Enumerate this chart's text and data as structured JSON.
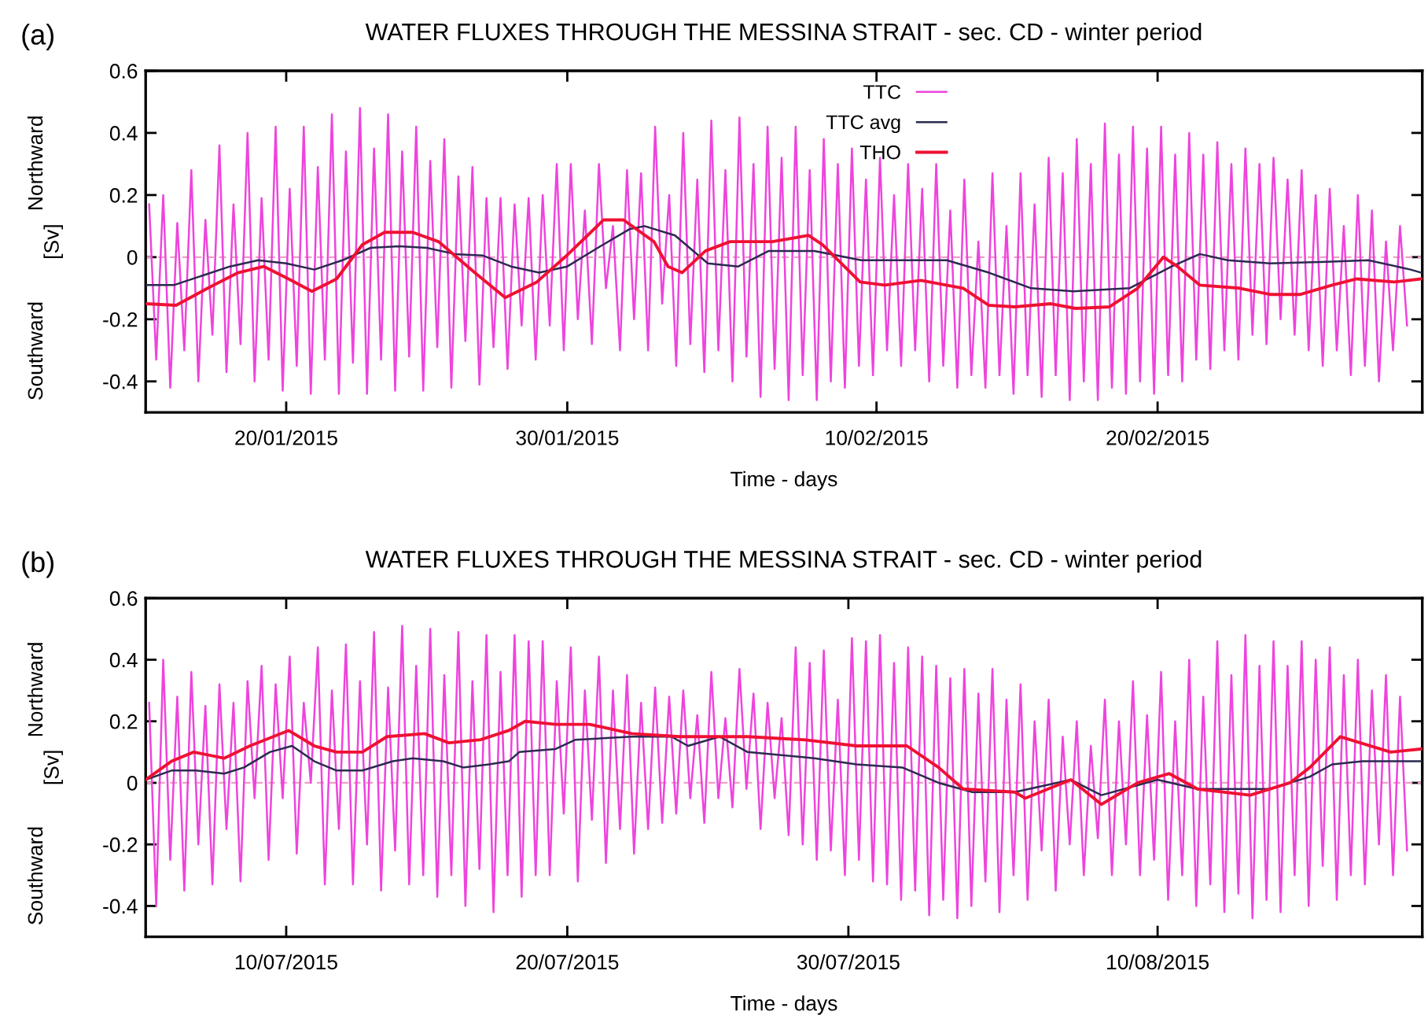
{
  "chart_data": [
    {
      "type": "line",
      "title": "WATER FLUXES THROUGH THE MESSINA STRAIT - sec. CD - winter period",
      "xlabel": "Time - days",
      "ylabel": "[Sv]",
      "annotations": [
        "(a)",
        "Northward",
        "Southward"
      ],
      "xlim": [
        "2015-01-15T00:00",
        "2015-03-01T10:00"
      ],
      "ylim": [
        -0.5,
        0.6
      ],
      "yticks": [
        -0.4,
        -0.2,
        0,
        0.2,
        0.4,
        0.6
      ],
      "xticks": [
        {
          "value": "2015-01-20",
          "label": "20/01/2015"
        },
        {
          "value": "2015-01-30",
          "label": "30/01/2015"
        },
        {
          "value": "2015-02-10",
          "label": "10/02/2015"
        },
        {
          "value": "2015-02-20",
          "label": "20/02/2015"
        }
      ],
      "grid": false,
      "legend": "top",
      "line_style": "solid",
      "ref_lines": [
        {
          "axis": "y",
          "value": 0,
          "label": null,
          "color": "#f0a0c8",
          "line_style": "dashed"
        }
      ],
      "series": [
        {
          "name": "TTC",
          "color": "#ee44dd",
          "x": [
            "2015-01-15T03:00",
            "2015-01-15T09:00",
            "2015-01-15T15:00",
            "2015-01-15T21:00",
            "2015-01-16T03:00",
            "2015-01-16T09:00",
            "2015-01-16T15:00",
            "2015-01-16T21:00",
            "2015-01-17T03:00",
            "2015-01-17T09:00",
            "2015-01-17T15:00",
            "2015-01-17T21:00",
            "2015-01-18T03:00",
            "2015-01-18T09:00",
            "2015-01-18T15:00",
            "2015-01-18T21:00",
            "2015-01-19T03:00",
            "2015-01-19T09:00",
            "2015-01-19T15:00",
            "2015-01-19T21:00",
            "2015-01-20T03:00",
            "2015-01-20T09:00",
            "2015-01-20T15:00",
            "2015-01-20T21:00",
            "2015-01-21T03:00",
            "2015-01-21T09:00",
            "2015-01-21T15:00",
            "2015-01-21T21:00",
            "2015-01-22T03:00",
            "2015-01-22T09:00",
            "2015-01-22T15:00",
            "2015-01-22T21:00",
            "2015-01-23T03:00",
            "2015-01-23T09:00",
            "2015-01-23T15:00",
            "2015-01-23T21:00",
            "2015-01-24T03:00",
            "2015-01-24T09:00",
            "2015-01-24T15:00",
            "2015-01-24T21:00",
            "2015-01-25T03:00",
            "2015-01-25T09:00",
            "2015-01-25T15:00",
            "2015-01-25T21:00",
            "2015-01-26T03:00",
            "2015-01-26T09:00",
            "2015-01-26T15:00",
            "2015-01-26T21:00",
            "2015-01-27T03:00",
            "2015-01-27T09:00",
            "2015-01-27T15:00",
            "2015-01-27T21:00",
            "2015-01-28T03:00",
            "2015-01-28T09:00",
            "2015-01-28T15:00",
            "2015-01-28T21:00",
            "2015-01-29T03:00",
            "2015-01-29T09:00",
            "2015-01-29T15:00",
            "2015-01-29T21:00",
            "2015-01-30T03:00",
            "2015-01-30T09:00",
            "2015-01-30T15:00",
            "2015-01-30T21:00",
            "2015-01-31T03:00",
            "2015-01-31T09:00",
            "2015-01-31T15:00",
            "2015-01-31T21:00",
            "2015-02-01T03:00",
            "2015-02-01T09:00",
            "2015-02-01T15:00",
            "2015-02-01T21:00",
            "2015-02-02T03:00",
            "2015-02-02T09:00",
            "2015-02-02T15:00",
            "2015-02-02T21:00",
            "2015-02-03T03:00",
            "2015-02-03T09:00",
            "2015-02-03T15:00",
            "2015-02-03T21:00",
            "2015-02-04T03:00",
            "2015-02-04T09:00",
            "2015-02-04T15:00",
            "2015-02-04T21:00",
            "2015-02-05T03:00",
            "2015-02-05T09:00",
            "2015-02-05T15:00",
            "2015-02-05T21:00",
            "2015-02-06T03:00",
            "2015-02-06T09:00",
            "2015-02-06T15:00",
            "2015-02-06T21:00",
            "2015-02-07T03:00",
            "2015-02-07T09:00",
            "2015-02-07T15:00",
            "2015-02-07T21:00",
            "2015-02-08T03:00",
            "2015-02-08T09:00",
            "2015-02-08T15:00",
            "2015-02-08T21:00",
            "2015-02-09T03:00",
            "2015-02-09T09:00",
            "2015-02-09T15:00",
            "2015-02-09T21:00",
            "2015-02-10T03:00",
            "2015-02-10T09:00",
            "2015-02-10T15:00",
            "2015-02-10T21:00",
            "2015-02-11T03:00",
            "2015-02-11T09:00",
            "2015-02-11T15:00",
            "2015-02-11T21:00",
            "2015-02-12T03:00",
            "2015-02-12T09:00",
            "2015-02-12T15:00",
            "2015-02-12T21:00",
            "2015-02-13T03:00",
            "2015-02-13T09:00",
            "2015-02-13T15:00",
            "2015-02-13T21:00",
            "2015-02-14T03:00",
            "2015-02-14T09:00",
            "2015-02-14T15:00",
            "2015-02-14T21:00",
            "2015-02-15T03:00",
            "2015-02-15T09:00",
            "2015-02-15T15:00",
            "2015-02-15T21:00",
            "2015-02-16T03:00",
            "2015-02-16T09:00",
            "2015-02-16T15:00",
            "2015-02-16T21:00",
            "2015-02-17T03:00",
            "2015-02-17T09:00",
            "2015-02-17T15:00",
            "2015-02-17T21:00",
            "2015-02-18T03:00",
            "2015-02-18T09:00",
            "2015-02-18T15:00",
            "2015-02-18T21:00",
            "2015-02-19T03:00",
            "2015-02-19T09:00",
            "2015-02-19T15:00",
            "2015-02-19T21:00",
            "2015-02-20T03:00",
            "2015-02-20T09:00",
            "2015-02-20T15:00",
            "2015-02-20T21:00",
            "2015-02-21T03:00",
            "2015-02-21T09:00",
            "2015-02-21T15:00",
            "2015-02-21T21:00",
            "2015-02-22T03:00",
            "2015-02-22T09:00",
            "2015-02-22T15:00",
            "2015-02-22T21:00",
            "2015-02-23T03:00",
            "2015-02-23T09:00",
            "2015-02-23T15:00",
            "2015-02-23T21:00",
            "2015-02-24T03:00",
            "2015-02-24T09:00",
            "2015-02-24T15:00",
            "2015-02-24T21:00",
            "2015-02-25T03:00",
            "2015-02-25T09:00",
            "2015-02-25T15:00",
            "2015-02-25T21:00",
            "2015-02-26T03:00",
            "2015-02-26T09:00",
            "2015-02-26T15:00",
            "2015-02-26T21:00",
            "2015-02-27T03:00",
            "2015-02-27T09:00",
            "2015-02-27T15:00",
            "2015-02-27T21:00",
            "2015-02-28T03:00",
            "2015-02-28T09:00",
            "2015-02-28T15:00",
            "2015-02-28T21:00"
          ],
          "values": [
            0.17,
            -0.33,
            0.2,
            -0.42,
            0.11,
            -0.3,
            0.28,
            -0.4,
            0.12,
            -0.25,
            0.36,
            -0.37,
            0.17,
            -0.28,
            0.4,
            -0.4,
            0.19,
            -0.33,
            0.42,
            -0.43,
            0.22,
            -0.35,
            0.42,
            -0.44,
            0.29,
            -0.33,
            0.46,
            -0.44,
            0.34,
            -0.34,
            0.48,
            -0.44,
            0.35,
            -0.33,
            0.46,
            -0.43,
            0.34,
            -0.32,
            0.42,
            -0.43,
            0.31,
            -0.29,
            0.38,
            -0.42,
            0.26,
            -0.27,
            0.29,
            -0.41,
            0.19,
            -0.29,
            0.19,
            -0.36,
            0.17,
            -0.22,
            0.19,
            -0.33,
            0.2,
            -0.22,
            0.3,
            -0.3,
            0.3,
            -0.2,
            0.15,
            -0.28,
            0.3,
            -0.1,
            0.1,
            -0.3,
            0.28,
            -0.2,
            0.27,
            -0.3,
            0.42,
            -0.15,
            0.2,
            -0.35,
            0.4,
            -0.28,
            0.25,
            -0.37,
            0.44,
            -0.3,
            0.28,
            -0.4,
            0.45,
            -0.32,
            0.3,
            -0.45,
            0.42,
            -0.36,
            0.32,
            -0.46,
            0.42,
            -0.38,
            0.28,
            -0.46,
            0.38,
            -0.4,
            0.3,
            -0.42,
            0.35,
            -0.35,
            0.25,
            -0.38,
            0.32,
            -0.3,
            0.2,
            -0.35,
            0.3,
            -0.3,
            0.22,
            -0.4,
            0.3,
            -0.35,
            0.15,
            -0.42,
            0.25,
            -0.38,
            0.05,
            -0.42,
            0.27,
            -0.38,
            0.1,
            -0.44,
            0.27,
            -0.38,
            0.17,
            -0.45,
            0.32,
            -0.38,
            0.27,
            -0.46,
            0.38,
            -0.4,
            0.3,
            -0.46,
            0.43,
            -0.42,
            0.33,
            -0.44,
            0.42,
            -0.4,
            0.35,
            -0.44,
            0.42,
            -0.38,
            0.33,
            -0.4,
            0.4,
            -0.33,
            0.33,
            -0.36,
            0.37,
            -0.3,
            0.3,
            -0.33,
            0.35,
            -0.25,
            0.3,
            -0.28,
            0.32,
            -0.2,
            0.25,
            -0.25,
            0.28,
            -0.3,
            0.2,
            -0.35,
            0.22,
            -0.3,
            0.1,
            -0.38,
            0.2,
            -0.35,
            0.15,
            -0.4,
            0.05,
            -0.3,
            0.1,
            -0.22
          ]
        },
        {
          "name": "TTC avg",
          "color": "#2a2a50",
          "x": [
            "2015-01-15T00:00",
            "2015-01-16T00:00",
            "2015-01-17T00:00",
            "2015-01-18T00:00",
            "2015-01-19T00:00",
            "2015-01-20T00:00",
            "2015-01-21T00:00",
            "2015-01-22T00:00",
            "2015-01-23T00:00",
            "2015-01-24T00:00",
            "2015-01-25T00:00",
            "2015-01-26T00:00",
            "2015-01-27T00:00",
            "2015-01-28T00:00",
            "2015-01-29T00:00",
            "2015-01-30T00:00",
            "2015-01-31T02:00",
            "2015-02-01T05:00",
            "2015-02-01T18:00",
            "2015-02-02T20:00",
            "2015-02-04T00:00",
            "2015-02-05T02:00",
            "2015-02-06T04:00",
            "2015-02-07T19:00",
            "2015-02-09T11:00",
            "2015-02-12T12:00",
            "2015-02-14T00:00",
            "2015-02-15T12:00",
            "2015-02-17T00:00",
            "2015-02-19T00:00",
            "2015-02-20T12:00",
            "2015-02-21T12:00",
            "2015-02-22T12:00",
            "2015-02-24T00:00",
            "2015-02-26T00:00",
            "2015-02-27T12:00",
            "2015-03-01T00:00",
            "2015-03-01T09:00"
          ],
          "values": [
            -0.09,
            -0.09,
            -0.06,
            -0.03,
            -0.01,
            -0.02,
            -0.04,
            -0.01,
            0.03,
            0.035,
            0.03,
            0.01,
            0.005,
            -0.03,
            -0.05,
            -0.03,
            0.03,
            0.09,
            0.1,
            0.07,
            -0.02,
            -0.03,
            0.02,
            0.02,
            -0.01,
            -0.01,
            -0.05,
            -0.1,
            -0.11,
            -0.1,
            -0.03,
            0.01,
            -0.01,
            -0.02,
            -0.015,
            -0.01,
            -0.04,
            -0.05
          ]
        },
        {
          "name": "THO",
          "color": "#ee1133",
          "x": [
            "2015-01-15T00:00",
            "2015-01-16T02:00",
            "2015-01-17T05:00",
            "2015-01-18T07:00",
            "2015-01-19T05:00",
            "2015-01-20T02:00",
            "2015-01-20T22:00",
            "2015-01-21T19:00",
            "2015-01-22T17:00",
            "2015-01-23T12:00",
            "2015-01-24T12:00",
            "2015-01-25T10:00",
            "2015-01-26T17:00",
            "2015-01-27T19:00",
            "2015-01-28T22:00",
            "2015-01-29T22:00",
            "2015-01-31T07:00",
            "2015-02-01T00:00",
            "2015-02-02T02:00",
            "2015-02-02T14:00",
            "2015-02-03T02:00",
            "2015-02-03T22:00",
            "2015-02-04T19:00",
            "2015-02-06T07:00",
            "2015-02-07T14:00",
            "2015-02-08T02:00",
            "2015-02-09T10:00",
            "2015-02-10T07:00",
            "2015-02-11T14:00",
            "2015-02-13T02:00",
            "2015-02-14T00:00",
            "2015-02-14T22:00",
            "2015-02-16T05:00",
            "2015-02-17T02:00",
            "2015-02-18T07:00",
            "2015-02-19T07:00",
            "2015-02-20T05:00",
            "2015-02-20T17:00",
            "2015-02-21T12:00",
            "2015-02-22T22:00",
            "2015-02-24T00:00",
            "2015-02-25T02:00",
            "2015-02-26T05:00",
            "2015-02-27T02:00",
            "2015-02-28T10:00",
            "2015-03-01T09:00"
          ],
          "values": [
            -0.15,
            -0.155,
            -0.1,
            -0.05,
            -0.03,
            -0.07,
            -0.11,
            -0.07,
            0.04,
            0.08,
            0.08,
            0.05,
            -0.05,
            -0.13,
            -0.08,
            0.0,
            0.12,
            0.12,
            0.05,
            -0.03,
            -0.05,
            0.02,
            0.05,
            0.05,
            0.07,
            0.04,
            -0.08,
            -0.09,
            -0.075,
            -0.1,
            -0.155,
            -0.16,
            -0.15,
            -0.165,
            -0.16,
            -0.1,
            0.0,
            -0.03,
            -0.09,
            -0.1,
            -0.12,
            -0.12,
            -0.09,
            -0.07,
            -0.08,
            -0.07
          ]
        }
      ]
    },
    {
      "type": "line",
      "title": "WATER FLUXES THROUGH THE MESSINA STRAIT - sec. CD - winter period",
      "xlabel": "Time - days",
      "ylabel": "[Sv]",
      "annotations": [
        "(b)",
        "Northward",
        "Southward"
      ],
      "xlim": [
        "2015-07-05T00:00",
        "2015-08-19T10:00"
      ],
      "ylim": [
        -0.5,
        0.6
      ],
      "yticks": [
        -0.4,
        -0.2,
        0,
        0.2,
        0.4,
        0.6
      ],
      "xticks": [
        {
          "value": "2015-07-10",
          "label": "10/07/2015"
        },
        {
          "value": "2015-07-20",
          "label": "20/07/2015"
        },
        {
          "value": "2015-07-30",
          "label": "30/07/2015"
        },
        {
          "value": "2015-08-10",
          "label": "10/08/2015"
        }
      ],
      "grid": false,
      "line_style": "solid",
      "ref_lines": [
        {
          "axis": "y",
          "value": 0,
          "label": null,
          "color": "#f0a0c8",
          "line_style": "dashed"
        }
      ],
      "series": [
        {
          "color": "#ee44dd",
          "x": [
            "2015-07-05T03:00",
            "2015-07-05T09:00",
            "2015-07-05T15:00",
            "2015-07-05T21:00",
            "2015-07-06T03:00",
            "2015-07-06T09:00",
            "2015-07-06T15:00",
            "2015-07-06T21:00",
            "2015-07-07T03:00",
            "2015-07-07T09:00",
            "2015-07-07T15:00",
            "2015-07-07T21:00",
            "2015-07-08T03:00",
            "2015-07-08T09:00",
            "2015-07-08T15:00",
            "2015-07-08T21:00",
            "2015-07-09T03:00",
            "2015-07-09T09:00",
            "2015-07-09T15:00",
            "2015-07-09T21:00",
            "2015-07-10T03:00",
            "2015-07-10T09:00",
            "2015-07-10T15:00",
            "2015-07-10T21:00",
            "2015-07-11T03:00",
            "2015-07-11T09:00",
            "2015-07-11T15:00",
            "2015-07-11T21:00",
            "2015-07-12T03:00",
            "2015-07-12T09:00",
            "2015-07-12T15:00",
            "2015-07-12T21:00",
            "2015-07-13T03:00",
            "2015-07-13T09:00",
            "2015-07-13T15:00",
            "2015-07-13T21:00",
            "2015-07-14T03:00",
            "2015-07-14T09:00",
            "2015-07-14T15:00",
            "2015-07-14T21:00",
            "2015-07-15T03:00",
            "2015-07-15T09:00",
            "2015-07-15T15:00",
            "2015-07-15T21:00",
            "2015-07-16T03:00",
            "2015-07-16T09:00",
            "2015-07-16T15:00",
            "2015-07-16T21:00",
            "2015-07-17T03:00",
            "2015-07-17T09:00",
            "2015-07-17T15:00",
            "2015-07-17T21:00",
            "2015-07-18T03:00",
            "2015-07-18T09:00",
            "2015-07-18T15:00",
            "2015-07-18T21:00",
            "2015-07-19T03:00",
            "2015-07-19T09:00",
            "2015-07-19T15:00",
            "2015-07-19T21:00",
            "2015-07-20T03:00",
            "2015-07-20T09:00",
            "2015-07-20T15:00",
            "2015-07-20T21:00",
            "2015-07-21T03:00",
            "2015-07-21T09:00",
            "2015-07-21T15:00",
            "2015-07-21T21:00",
            "2015-07-22T03:00",
            "2015-07-22T09:00",
            "2015-07-22T15:00",
            "2015-07-22T21:00",
            "2015-07-23T03:00",
            "2015-07-23T09:00",
            "2015-07-23T15:00",
            "2015-07-23T21:00",
            "2015-07-24T03:00",
            "2015-07-24T09:00",
            "2015-07-24T15:00",
            "2015-07-24T21:00",
            "2015-07-25T03:00",
            "2015-07-25T09:00",
            "2015-07-25T15:00",
            "2015-07-25T21:00",
            "2015-07-26T03:00",
            "2015-07-26T09:00",
            "2015-07-26T15:00",
            "2015-07-26T21:00",
            "2015-07-27T03:00",
            "2015-07-27T09:00",
            "2015-07-27T15:00",
            "2015-07-27T21:00",
            "2015-07-28T03:00",
            "2015-07-28T09:00",
            "2015-07-28T15:00",
            "2015-07-28T21:00",
            "2015-07-29T03:00",
            "2015-07-29T09:00",
            "2015-07-29T15:00",
            "2015-07-29T21:00",
            "2015-07-30T03:00",
            "2015-07-30T09:00",
            "2015-07-30T15:00",
            "2015-07-30T21:00",
            "2015-07-31T03:00",
            "2015-07-31T09:00",
            "2015-07-31T15:00",
            "2015-07-31T21:00",
            "2015-08-01T03:00",
            "2015-08-01T09:00",
            "2015-08-01T15:00",
            "2015-08-01T21:00",
            "2015-08-02T03:00",
            "2015-08-02T09:00",
            "2015-08-02T15:00",
            "2015-08-02T21:00",
            "2015-08-03T03:00",
            "2015-08-03T09:00",
            "2015-08-03T15:00",
            "2015-08-03T21:00",
            "2015-08-04T03:00",
            "2015-08-04T09:00",
            "2015-08-04T15:00",
            "2015-08-04T21:00",
            "2015-08-05T03:00",
            "2015-08-05T09:00",
            "2015-08-05T15:00",
            "2015-08-05T21:00",
            "2015-08-06T03:00",
            "2015-08-06T09:00",
            "2015-08-06T15:00",
            "2015-08-06T21:00",
            "2015-08-07T03:00",
            "2015-08-07T09:00",
            "2015-08-07T15:00",
            "2015-08-07T21:00",
            "2015-08-08T03:00",
            "2015-08-08T09:00",
            "2015-08-08T15:00",
            "2015-08-08T21:00",
            "2015-08-09T03:00",
            "2015-08-09T09:00",
            "2015-08-09T15:00",
            "2015-08-09T21:00",
            "2015-08-10T03:00",
            "2015-08-10T09:00",
            "2015-08-10T15:00",
            "2015-08-10T21:00",
            "2015-08-11T03:00",
            "2015-08-11T09:00",
            "2015-08-11T15:00",
            "2015-08-11T21:00",
            "2015-08-12T03:00",
            "2015-08-12T09:00",
            "2015-08-12T15:00",
            "2015-08-12T21:00",
            "2015-08-13T03:00",
            "2015-08-13T09:00",
            "2015-08-13T15:00",
            "2015-08-13T21:00",
            "2015-08-14T03:00",
            "2015-08-14T09:00",
            "2015-08-14T15:00",
            "2015-08-14T21:00",
            "2015-08-15T03:00",
            "2015-08-15T09:00",
            "2015-08-15T15:00",
            "2015-08-15T21:00",
            "2015-08-16T03:00",
            "2015-08-16T09:00",
            "2015-08-16T15:00",
            "2015-08-16T21:00",
            "2015-08-17T03:00",
            "2015-08-17T09:00",
            "2015-08-17T15:00",
            "2015-08-17T21:00",
            "2015-08-18T03:00",
            "2015-08-18T09:00",
            "2015-08-18T15:00",
            "2015-08-18T21:00"
          ],
          "values": [
            0.26,
            -0.4,
            0.4,
            -0.25,
            0.28,
            -0.35,
            0.36,
            -0.2,
            0.25,
            -0.33,
            0.32,
            -0.15,
            0.26,
            -0.32,
            0.33,
            -0.05,
            0.38,
            -0.25,
            0.32,
            -0.05,
            0.41,
            -0.23,
            0.26,
            0.0,
            0.44,
            -0.33,
            0.3,
            -0.15,
            0.45,
            -0.33,
            0.33,
            -0.2,
            0.49,
            -0.35,
            0.31,
            -0.22,
            0.51,
            -0.33,
            0.38,
            -0.3,
            0.5,
            -0.37,
            0.35,
            -0.3,
            0.49,
            -0.4,
            0.33,
            -0.28,
            0.48,
            -0.42,
            0.36,
            -0.3,
            0.48,
            -0.37,
            0.46,
            -0.3,
            0.46,
            -0.3,
            0.33,
            -0.1,
            0.44,
            -0.32,
            0.3,
            -0.12,
            0.41,
            -0.26,
            0.3,
            -0.15,
            0.35,
            -0.23,
            0.26,
            -0.15,
            0.31,
            -0.13,
            0.28,
            -0.1,
            0.3,
            -0.05,
            0.22,
            -0.13,
            0.36,
            -0.05,
            0.21,
            -0.08,
            0.37,
            -0.02,
            0.29,
            -0.15,
            0.26,
            -0.05,
            0.21,
            -0.17,
            0.44,
            -0.2,
            0.39,
            -0.25,
            0.43,
            -0.22,
            0.27,
            -0.3,
            0.47,
            -0.25,
            0.46,
            -0.32,
            0.48,
            -0.33,
            0.39,
            -0.38,
            0.44,
            -0.35,
            0.41,
            -0.43,
            0.38,
            -0.38,
            0.34,
            -0.44,
            0.37,
            -0.4,
            0.29,
            -0.32,
            0.37,
            -0.42,
            0.27,
            -0.3,
            0.32,
            -0.38,
            0.2,
            -0.22,
            0.27,
            -0.35,
            0.15,
            -0.2,
            0.2,
            -0.3,
            0.12,
            -0.18,
            0.27,
            -0.3,
            0.2,
            -0.2,
            0.33,
            -0.3,
            0.22,
            -0.25,
            0.36,
            -0.38,
            0.2,
            -0.3,
            0.4,
            -0.4,
            0.28,
            -0.33,
            0.46,
            -0.42,
            0.35,
            -0.36,
            0.48,
            -0.44,
            0.38,
            -0.38,
            0.46,
            -0.42,
            0.38,
            -0.3,
            0.46,
            -0.4,
            0.4,
            -0.27,
            0.44,
            -0.38,
            0.35,
            -0.3,
            0.4,
            -0.33,
            0.3,
            -0.2,
            0.35,
            -0.3,
            0.28,
            -0.22
          ]
        },
        {
          "color": "#2a2a50",
          "x": [
            "2015-07-05T00:00",
            "2015-07-05T22:00",
            "2015-07-06T19:00",
            "2015-07-07T19:00",
            "2015-07-08T12:00",
            "2015-07-09T10:00",
            "2015-07-10T05:00",
            "2015-07-11T00:00",
            "2015-07-11T19:00",
            "2015-07-12T17:00",
            "2015-07-13T19:00",
            "2015-07-14T12:00",
            "2015-07-15T14:00",
            "2015-07-16T07:00",
            "2015-07-17T05:00",
            "2015-07-17T22:00",
            "2015-07-18T07:00",
            "2015-07-19T14:00",
            "2015-07-20T07:00",
            "2015-07-22T07:00",
            "2015-07-23T17:00",
            "2015-07-24T07:00",
            "2015-07-25T10:00",
            "2015-07-26T10:00",
            "2015-07-28T19:00",
            "2015-07-30T07:00",
            "2015-07-31T22:00",
            "2015-08-02T05:00",
            "2015-08-03T10:00",
            "2015-08-04T22:00",
            "2015-08-06T22:00",
            "2015-08-08T00:00",
            "2015-08-10T00:00",
            "2015-08-11T10:00",
            "2015-08-14T00:00",
            "2015-08-15T10:00",
            "2015-08-16T05:00",
            "2015-08-17T07:00",
            "2015-08-19T09:00"
          ],
          "values": [
            0.01,
            0.04,
            0.04,
            0.03,
            0.05,
            0.1,
            0.12,
            0.07,
            0.04,
            0.04,
            0.07,
            0.08,
            0.07,
            0.05,
            0.06,
            0.07,
            0.1,
            0.11,
            0.14,
            0.15,
            0.15,
            0.12,
            0.15,
            0.1,
            0.08,
            0.06,
            0.05,
            0.0,
            -0.03,
            -0.03,
            0.01,
            -0.04,
            0.01,
            -0.02,
            -0.02,
            0.02,
            0.06,
            0.07,
            0.07
          ]
        },
        {
          "color": "#ee1133",
          "x": [
            "2015-07-05T00:00",
            "2015-07-05T22:00",
            "2015-07-06T17:00",
            "2015-07-07T19:00",
            "2015-07-08T17:00",
            "2015-07-10T02:00",
            "2015-07-11T00:00",
            "2015-07-11T19:00",
            "2015-07-12T17:00",
            "2015-07-13T14:00",
            "2015-07-14T22:00",
            "2015-07-15T19:00",
            "2015-07-16T22:00",
            "2015-07-17T22:00",
            "2015-07-18T12:00",
            "2015-07-19T14:00",
            "2015-07-20T19:00",
            "2015-07-22T07:00",
            "2015-07-24T00:00",
            "2015-07-26T10:00",
            "2015-07-28T10:00",
            "2015-07-30T07:00",
            "2015-08-01T02:00",
            "2015-08-02T05:00",
            "2015-08-03T02:00",
            "2015-08-04T22:00",
            "2015-08-05T07:00",
            "2015-08-06T22:00",
            "2015-08-08T00:00",
            "2015-08-09T07:00",
            "2015-08-10T10:00",
            "2015-08-11T10:00",
            "2015-08-13T07:00",
            "2015-08-14T17:00",
            "2015-08-15T10:00",
            "2015-08-16T12:00",
            "2015-08-18T07:00",
            "2015-08-19T09:00"
          ],
          "values": [
            0.01,
            0.07,
            0.1,
            0.08,
            0.12,
            0.17,
            0.12,
            0.1,
            0.1,
            0.15,
            0.16,
            0.13,
            0.14,
            0.17,
            0.2,
            0.19,
            0.19,
            0.16,
            0.15,
            0.15,
            0.14,
            0.12,
            0.12,
            0.05,
            -0.02,
            -0.03,
            -0.05,
            0.01,
            -0.07,
            0.0,
            0.03,
            -0.02,
            -0.04,
            0.0,
            0.05,
            0.15,
            0.1,
            0.11
          ]
        }
      ]
    }
  ]
}
